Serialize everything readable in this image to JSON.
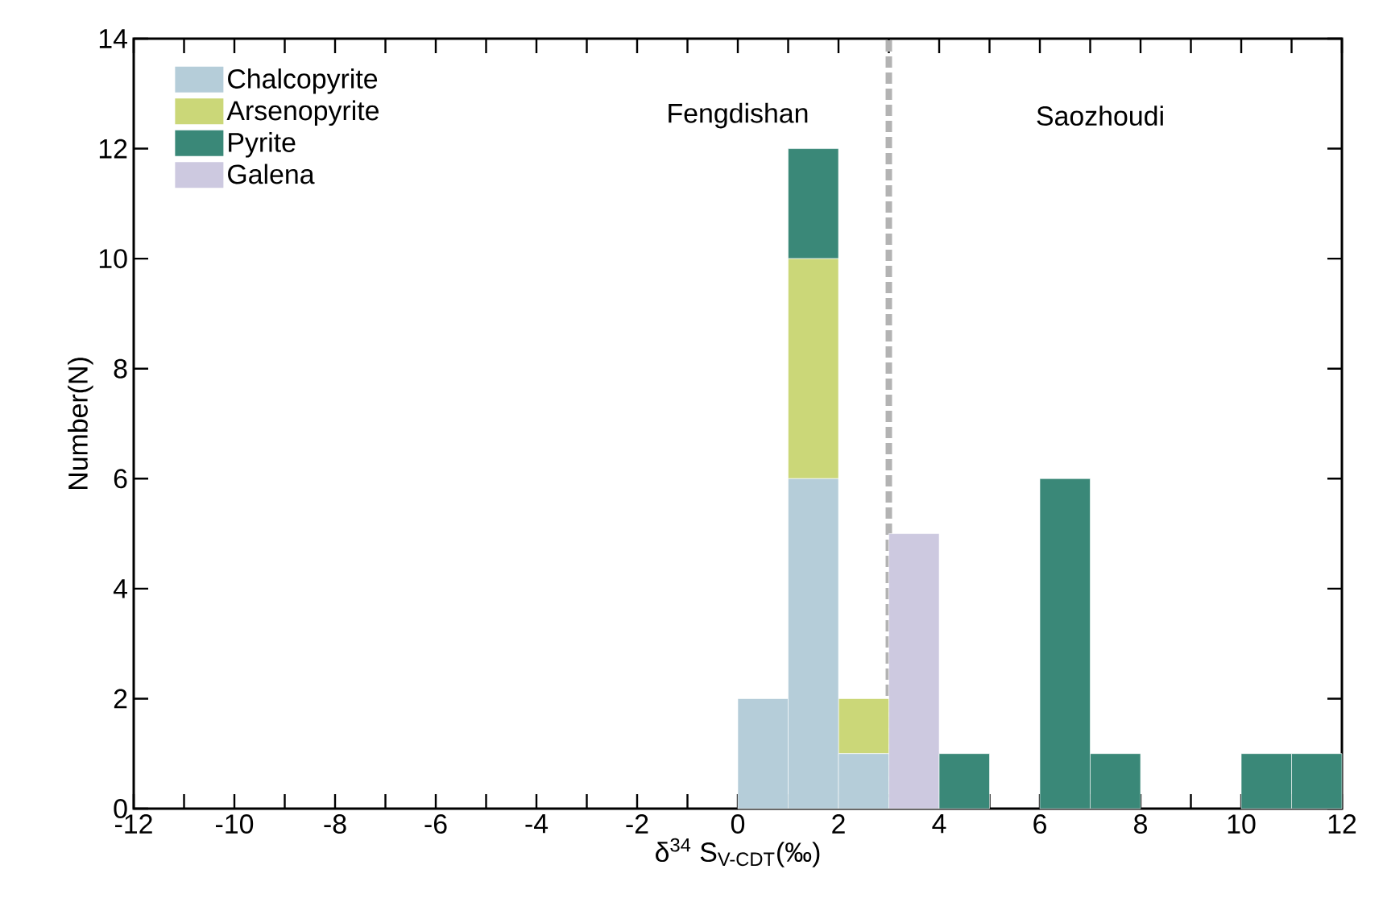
{
  "chart_data": {
    "type": "bar",
    "stacked": true,
    "xlabel": "δ$^{34}$ S$_{V-CDT}$(‰)",
    "ylabel": "Number(N)",
    "x": [
      0.5,
      1.5,
      2.5,
      3.5,
      4.5,
      5.5,
      6.5,
      7.5,
      8.5,
      9.5,
      10.5,
      11.5
    ],
    "series": [
      {
        "name": "Chalcopyrite",
        "color": "#b5cdd9",
        "values": [
          2,
          6,
          1,
          0,
          0,
          0,
          0,
          0,
          0,
          0,
          0,
          0
        ]
      },
      {
        "name": "Arsenopyrite",
        "color": "#cbd778",
        "values": [
          0,
          4,
          1,
          0,
          0,
          0,
          0,
          0,
          0,
          0,
          0,
          0
        ]
      },
      {
        "name": "Pyrite",
        "color": "#3a8878",
        "values": [
          0,
          2,
          0,
          0,
          1,
          0,
          6,
          1,
          0,
          0,
          1,
          1
        ]
      },
      {
        "name": "Galena",
        "color": "#cdc9e0",
        "values": [
          0,
          0,
          0,
          5,
          0,
          0,
          0,
          0,
          0,
          0,
          0,
          0
        ]
      }
    ],
    "xlim": [
      -12,
      12
    ],
    "ylim": [
      0,
      14
    ],
    "xticks": [
      -12,
      {
        "value": -11,
        "label": null
      },
      -10,
      {
        "value": -9,
        "label": null
      },
      -8,
      {
        "value": -7,
        "label": null
      },
      -6,
      {
        "value": -5,
        "label": null
      },
      -4,
      {
        "value": -3,
        "label": null
      },
      -2,
      {
        "value": -1,
        "label": null
      },
      0,
      {
        "value": 1,
        "label": null
      },
      2,
      {
        "value": 3,
        "label": null
      },
      4,
      {
        "value": 5,
        "label": null
      },
      6,
      {
        "value": 7,
        "label": null
      },
      8,
      {
        "value": 9,
        "label": null
      },
      10,
      {
        "value": 11,
        "label": null
      },
      12
    ],
    "yticks": [
      0,
      2,
      4,
      6,
      8,
      10,
      12,
      14
    ],
    "ref_lines": [
      {
        "axis": "x",
        "value": 3,
        "color": "#b3b3b3",
        "line_style": "dashed"
      }
    ],
    "annotations": [
      "Fengdishan",
      "Saozhoudi"
    ],
    "legend": "top left",
    "grid": false
  }
}
